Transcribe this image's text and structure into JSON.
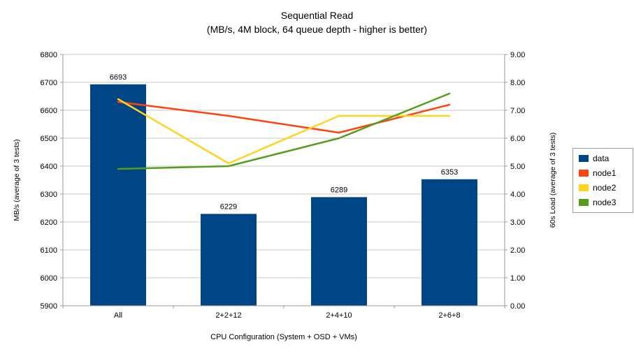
{
  "chart_data": {
    "type": "combo-bar-line",
    "title": "Sequential Read",
    "subtitle": "(MB/s, 4M block, 64 queue depth - higher is better)",
    "categories": [
      "All",
      "2+2+12",
      "2+4+10",
      "2+6+8"
    ],
    "xlabel": "CPU Configuration (System + OSD + VMs)",
    "ylabel_left": "MB/s (average of 3 tests)",
    "ylabel_right": "60s Load (average of 3 tests)",
    "y_left": {
      "min": 5900,
      "max": 6800,
      "step": 100
    },
    "y_right": {
      "min": 0,
      "max": 9,
      "step": 1
    },
    "y_left_ticks": [
      "5900",
      "6000",
      "6100",
      "6200",
      "6300",
      "6400",
      "6500",
      "6600",
      "6700",
      "6800"
    ],
    "y_right_ticks": [
      "0.00",
      "1.00",
      "2.00",
      "3.00",
      "4.00",
      "5.00",
      "6.00",
      "7.00",
      "8.00",
      "9.00"
    ],
    "bar_series": {
      "name": "data",
      "color": "#004586",
      "axis": "left",
      "values": [
        6693,
        6229,
        6289,
        6353
      ],
      "labels": [
        "6693",
        "6229",
        "6289",
        "6353"
      ]
    },
    "line_series": [
      {
        "name": "node1",
        "color": "#ff420e",
        "axis": "right",
        "values": [
          7.3,
          6.8,
          6.2,
          7.2
        ]
      },
      {
        "name": "node2",
        "color": "#ffd320",
        "axis": "right",
        "values": [
          7.4,
          5.1,
          6.8,
          6.8
        ]
      },
      {
        "name": "node3",
        "color": "#579d1c",
        "axis": "right",
        "values": [
          4.9,
          5.0,
          6.0,
          7.6
        ]
      }
    ],
    "legend": {
      "position": "right",
      "items": [
        "data",
        "node1",
        "node2",
        "node3"
      ]
    },
    "grid": true,
    "gridline_color": "#c7c7c7",
    "axis_color": "#9a9a9a",
    "text_color": "#000000",
    "background": "#ffffff"
  }
}
